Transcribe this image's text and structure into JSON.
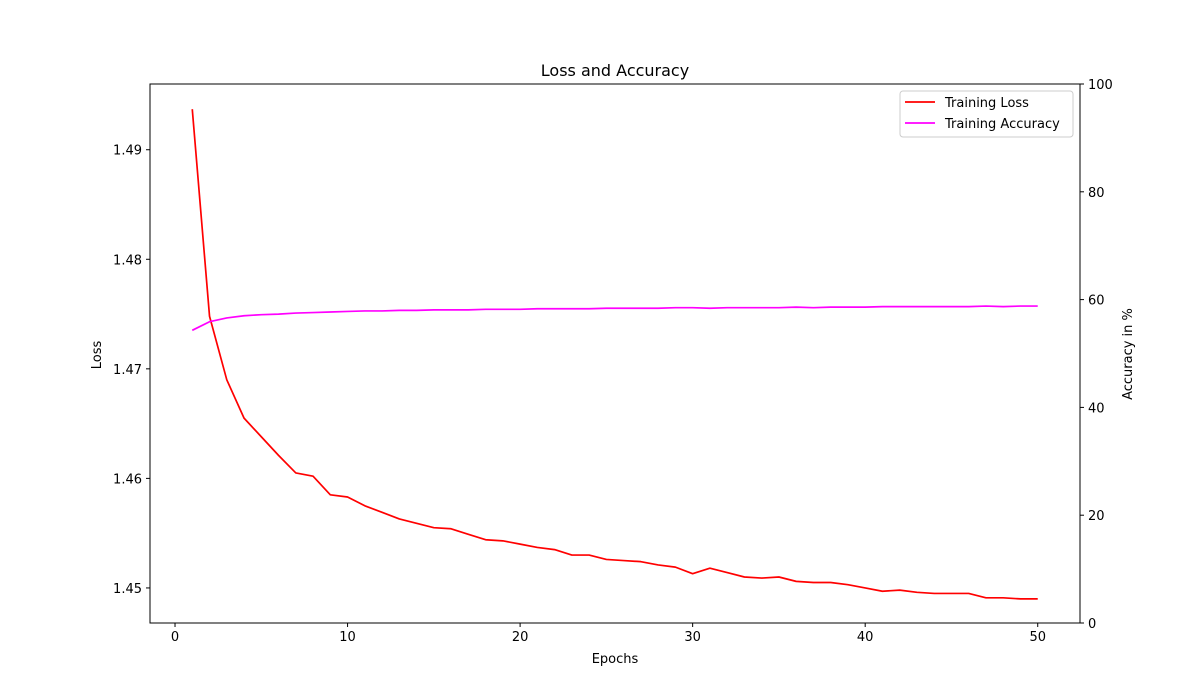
{
  "chart_data": {
    "type": "line",
    "title": "Loss and Accuracy",
    "xlabel": "Epochs",
    "ylabel": "Loss",
    "y2label": "Accuracy in %",
    "xlim": [
      -1.45,
      52.45
    ],
    "ylim": [
      1.4468,
      1.496
    ],
    "y2lim": [
      0,
      100
    ],
    "xticks": [
      0,
      10,
      20,
      30,
      40,
      50
    ],
    "yticks": [
      1.45,
      1.46,
      1.47,
      1.48,
      1.49
    ],
    "y2ticks": [
      0,
      20,
      40,
      60,
      80,
      100
    ],
    "grid": false,
    "legend_position": "top-right",
    "x": [
      1,
      2,
      3,
      4,
      5,
      6,
      7,
      8,
      9,
      10,
      11,
      12,
      13,
      14,
      15,
      16,
      17,
      18,
      19,
      20,
      21,
      22,
      23,
      24,
      25,
      26,
      27,
      28,
      29,
      30,
      31,
      32,
      33,
      34,
      35,
      36,
      37,
      38,
      39,
      40,
      41,
      42,
      43,
      44,
      45,
      46,
      47,
      48,
      49,
      50
    ],
    "series": [
      {
        "name": "Training Loss",
        "axis": "left",
        "color": "#ff0000",
        "values": [
          1.4937,
          1.4748,
          1.469,
          1.4655,
          1.4638,
          1.4621,
          1.4605,
          1.4602,
          1.4585,
          1.4583,
          1.4575,
          1.4569,
          1.4563,
          1.4559,
          1.4555,
          1.4554,
          1.4549,
          1.4544,
          1.4543,
          1.454,
          1.4537,
          1.4535,
          1.453,
          1.453,
          1.4526,
          1.4525,
          1.4524,
          1.4521,
          1.4519,
          1.4513,
          1.4518,
          1.4514,
          1.451,
          1.4509,
          1.451,
          1.4506,
          1.4505,
          1.4505,
          1.4503,
          1.45,
          1.4497,
          1.4498,
          1.4496,
          1.4495,
          1.4495,
          1.4495,
          1.4491,
          1.4491,
          1.449,
          1.449
        ]
      },
      {
        "name": "Training Accuracy",
        "axis": "right",
        "color": "#ff00ff",
        "values": [
          54.3,
          55.9,
          56.6,
          57.0,
          57.2,
          57.3,
          57.5,
          57.6,
          57.7,
          57.8,
          57.9,
          57.9,
          58.0,
          58.0,
          58.1,
          58.1,
          58.1,
          58.2,
          58.2,
          58.2,
          58.3,
          58.3,
          58.3,
          58.3,
          58.4,
          58.4,
          58.4,
          58.4,
          58.5,
          58.5,
          58.4,
          58.5,
          58.5,
          58.5,
          58.5,
          58.6,
          58.5,
          58.6,
          58.6,
          58.6,
          58.7,
          58.7,
          58.7,
          58.7,
          58.7,
          58.7,
          58.8,
          58.7,
          58.8,
          58.8
        ]
      }
    ]
  }
}
